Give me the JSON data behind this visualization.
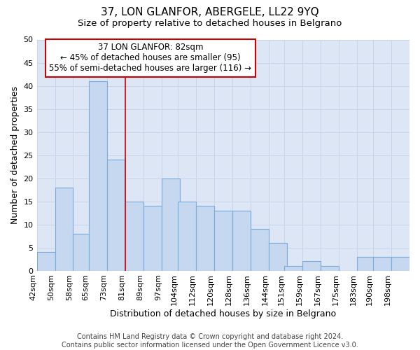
{
  "title": "37, LON GLANFOR, ABERGELE, LL22 9YQ",
  "subtitle": "Size of property relative to detached houses in Belgrano",
  "xlabel_bottom": "Distribution of detached houses by size in Belgrano",
  "ylabel": "Number of detached properties",
  "footer_line1": "Contains HM Land Registry data © Crown copyright and database right 2024.",
  "footer_line2": "Contains public sector information licensed under the Open Government Licence v3.0.",
  "categories": [
    "42sqm",
    "50sqm",
    "58sqm",
    "65sqm",
    "73sqm",
    "81sqm",
    "89sqm",
    "97sqm",
    "104sqm",
    "112sqm",
    "120sqm",
    "128sqm",
    "136sqm",
    "144sqm",
    "151sqm",
    "159sqm",
    "167sqm",
    "175sqm",
    "183sqm",
    "190sqm",
    "198sqm"
  ],
  "values": [
    4,
    18,
    8,
    41,
    24,
    15,
    14,
    20,
    15,
    14,
    13,
    13,
    9,
    6,
    1,
    2,
    1,
    0,
    3,
    3,
    3
  ],
  "bar_color": "#c5d8ef",
  "bar_edge_color": "#7aabdb",
  "annotation_box_text": "37 LON GLANFOR: 82sqm\n← 45% of detached houses are smaller (95)\n55% of semi-detached houses are larger (116) →",
  "annotation_box_color": "#ffffff",
  "annotation_box_edge_color": "#cc0000",
  "vline_color": "#cc0000",
  "vline_x_category_index": 5,
  "ylim": [
    0,
    50
  ],
  "yticks": [
    0,
    5,
    10,
    15,
    20,
    25,
    30,
    35,
    40,
    45,
    50
  ],
  "grid_color": "#c8d4e8",
  "background_color": "#dce6f5",
  "figure_facecolor": "#ffffff",
  "title_fontsize": 11,
  "subtitle_fontsize": 9.5,
  "tick_fontsize": 8,
  "ylabel_fontsize": 9,
  "xlabel_fontsize": 9,
  "footer_fontsize": 7,
  "annotation_fontsize": 8.5,
  "bin_width": 8
}
